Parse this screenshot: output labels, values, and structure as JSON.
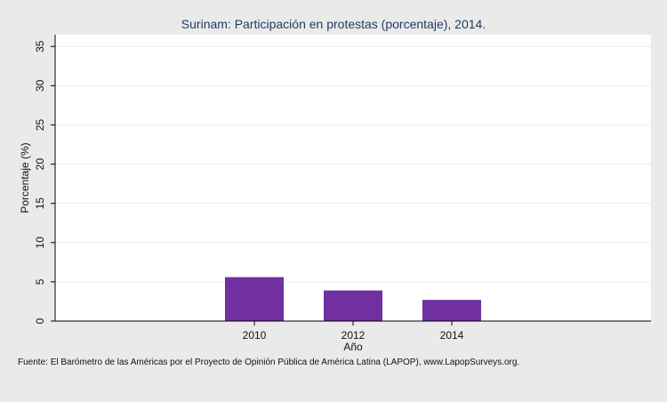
{
  "chart_data": {
    "type": "bar",
    "title": "Surinam: Participación en protestas (porcentaje), 2014.",
    "xlabel": "Año",
    "ylabel": "Porcentaje (%)",
    "categories": [
      "2010",
      "2012",
      "2014"
    ],
    "values": [
      5.6,
      3.9,
      2.7
    ],
    "ylim": [
      0,
      36.5
    ],
    "yticks": [
      0,
      5,
      10,
      15,
      20,
      25,
      30,
      35
    ],
    "ytick_labels": [
      "0",
      "5",
      "10",
      "15",
      "20",
      "25",
      "30",
      "35"
    ],
    "grid": true,
    "bar_color": "#7030a0",
    "source": "Fuente: El Barómetro de las Américas por el Proyecto de Opinión Pública de América Latina (LAPOP), www.LapopSurveys.org."
  }
}
